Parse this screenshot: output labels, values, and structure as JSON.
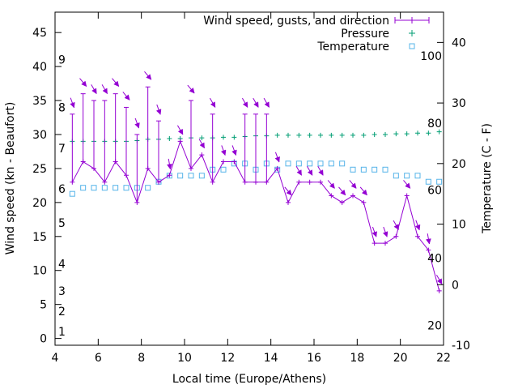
{
  "chart_data": {
    "type": "line",
    "xlabel": "Local time (Europe/Athens)",
    "ylabel_left": "Wind speed (kn - Beaufort)",
    "ylabel_right": "Temperature (C - F)",
    "xlim": [
      4,
      22
    ],
    "ylim_left": [
      -1,
      48
    ],
    "ylim_right": [
      -10,
      45
    ],
    "x_ticks": [
      4,
      6,
      8,
      10,
      12,
      14,
      16,
      18,
      20,
      22
    ],
    "y_ticks_left": [
      0,
      5,
      10,
      15,
      20,
      25,
      30,
      35,
      40,
      45
    ],
    "y_ticks_right": [
      -10,
      0,
      10,
      20,
      30,
      40
    ],
    "beaufort_labels": [
      {
        "label": "1",
        "kn": 1
      },
      {
        "label": "2",
        "kn": 4
      },
      {
        "label": "3",
        "kn": 7
      },
      {
        "label": "4",
        "kn": 11
      },
      {
        "label": "5",
        "kn": 17
      },
      {
        "label": "6",
        "kn": 22
      },
      {
        "label": "7",
        "kn": 28
      },
      {
        "label": "8",
        "kn": 34
      },
      {
        "label": "9",
        "kn": 41
      }
    ],
    "fahrenheit_labels": [
      {
        "label": "20",
        "c": -6.7
      },
      {
        "label": "40",
        "c": 4.4
      },
      {
        "label": "60",
        "c": 15.6
      },
      {
        "label": "80",
        "c": 26.7
      },
      {
        "label": "100",
        "c": 37.8
      }
    ],
    "legend": [
      {
        "label": "Wind speed, gusts, and direction",
        "color": "#9400d3"
      },
      {
        "label": "Pressure",
        "color": "#009e73"
      },
      {
        "label": "Temperature",
        "color": "#56b4e9"
      }
    ],
    "wind": [
      {
        "x": 4.8,
        "speed": 23,
        "gust": 33,
        "dir": 340
      },
      {
        "x": 5.3,
        "speed": 26,
        "gust": 36,
        "dir": 320
      },
      {
        "x": 5.8,
        "speed": 25,
        "gust": 35,
        "dir": 330
      },
      {
        "x": 6.3,
        "speed": 23,
        "gust": 35,
        "dir": 330
      },
      {
        "x": 6.8,
        "speed": 26,
        "gust": 36,
        "dir": 320
      },
      {
        "x": 7.3,
        "speed": 24,
        "gust": 34,
        "dir": 320
      },
      {
        "x": 7.8,
        "speed": 20,
        "gust": 30,
        "dir": 340
      },
      {
        "x": 8.3,
        "speed": 25,
        "gust": 37,
        "dir": 320
      },
      {
        "x": 8.8,
        "speed": 23,
        "gust": 32,
        "dir": 340
      },
      {
        "x": 9.3,
        "speed": 24,
        "gust": 24,
        "dir": 350
      },
      {
        "x": 9.8,
        "speed": 29,
        "gust": 29,
        "dir": 330
      },
      {
        "x": 10.3,
        "speed": 25,
        "gust": 35,
        "dir": 320
      },
      {
        "x": 10.8,
        "speed": 27,
        "gust": 27,
        "dir": 330
      },
      {
        "x": 11.3,
        "speed": 23,
        "gust": 33,
        "dir": 330
      },
      {
        "x": 11.8,
        "speed": 26,
        "gust": 26,
        "dir": 340
      },
      {
        "x": 12.3,
        "speed": 26,
        "gust": 26,
        "dir": 340
      },
      {
        "x": 12.8,
        "speed": 23,
        "gust": 33,
        "dir": 330
      },
      {
        "x": 13.3,
        "speed": 23,
        "gust": 33,
        "dir": 330
      },
      {
        "x": 13.8,
        "speed": 23,
        "gust": 33,
        "dir": 330
      },
      {
        "x": 14.3,
        "speed": 25,
        "gust": 25,
        "dir": 340
      },
      {
        "x": 14.8,
        "speed": 20,
        "gust": 20,
        "dir": 320
      },
      {
        "x": 15.3,
        "speed": 23,
        "gust": 23,
        "dir": 330
      },
      {
        "x": 15.8,
        "speed": 23,
        "gust": 23,
        "dir": 330
      },
      {
        "x": 16.3,
        "speed": 23,
        "gust": 23,
        "dir": 330
      },
      {
        "x": 16.8,
        "speed": 21,
        "gust": 21,
        "dir": 320
      },
      {
        "x": 17.3,
        "speed": 20,
        "gust": 20,
        "dir": 320
      },
      {
        "x": 17.8,
        "speed": 21,
        "gust": 21,
        "dir": 320
      },
      {
        "x": 18.3,
        "speed": 20,
        "gust": 20,
        "dir": 320
      },
      {
        "x": 18.8,
        "speed": 14,
        "gust": 14,
        "dir": 340
      },
      {
        "x": 19.3,
        "speed": 14,
        "gust": 14,
        "dir": 340
      },
      {
        "x": 19.8,
        "speed": 15,
        "gust": 15,
        "dir": 330
      },
      {
        "x": 20.3,
        "speed": 21,
        "gust": 21,
        "dir": 320
      },
      {
        "x": 20.8,
        "speed": 15,
        "gust": 15,
        "dir": 340
      },
      {
        "x": 21.3,
        "speed": 13,
        "gust": 13,
        "dir": 350
      },
      {
        "x": 21.8,
        "speed": 7,
        "gust": 7,
        "dir": 330
      }
    ],
    "pressure": [
      {
        "x": 4.8,
        "y": 29.0
      },
      {
        "x": 5.3,
        "y": 29.0
      },
      {
        "x": 5.8,
        "y": 29.0
      },
      {
        "x": 6.3,
        "y": 29.0
      },
      {
        "x": 6.8,
        "y": 29.0
      },
      {
        "x": 7.3,
        "y": 29.0
      },
      {
        "x": 7.8,
        "y": 29.1
      },
      {
        "x": 8.3,
        "y": 29.3
      },
      {
        "x": 8.8,
        "y": 29.3
      },
      {
        "x": 9.3,
        "y": 29.4
      },
      {
        "x": 9.8,
        "y": 29.4
      },
      {
        "x": 10.3,
        "y": 29.5
      },
      {
        "x": 10.8,
        "y": 29.5
      },
      {
        "x": 11.3,
        "y": 29.5
      },
      {
        "x": 11.8,
        "y": 29.6
      },
      {
        "x": 12.3,
        "y": 29.6
      },
      {
        "x": 12.8,
        "y": 29.7
      },
      {
        "x": 13.3,
        "y": 29.8
      },
      {
        "x": 13.8,
        "y": 29.8
      },
      {
        "x": 14.3,
        "y": 29.9
      },
      {
        "x": 14.8,
        "y": 29.9
      },
      {
        "x": 15.3,
        "y": 29.9
      },
      {
        "x": 15.8,
        "y": 29.9
      },
      {
        "x": 16.3,
        "y": 29.9
      },
      {
        "x": 16.8,
        "y": 29.9
      },
      {
        "x": 17.3,
        "y": 29.9
      },
      {
        "x": 17.8,
        "y": 29.9
      },
      {
        "x": 18.3,
        "y": 29.9
      },
      {
        "x": 18.8,
        "y": 30.0
      },
      {
        "x": 19.3,
        "y": 30.0
      },
      {
        "x": 19.8,
        "y": 30.1
      },
      {
        "x": 20.3,
        "y": 30.1
      },
      {
        "x": 20.8,
        "y": 30.2
      },
      {
        "x": 21.3,
        "y": 30.2
      },
      {
        "x": 21.8,
        "y": 30.4
      }
    ],
    "temperature": [
      {
        "x": 4.8,
        "c": 15
      },
      {
        "x": 5.3,
        "c": 16
      },
      {
        "x": 5.8,
        "c": 16
      },
      {
        "x": 6.3,
        "c": 16
      },
      {
        "x": 6.8,
        "c": 16
      },
      {
        "x": 7.3,
        "c": 16
      },
      {
        "x": 7.8,
        "c": 16
      },
      {
        "x": 8.3,
        "c": 16
      },
      {
        "x": 8.8,
        "c": 17
      },
      {
        "x": 9.3,
        "c": 18
      },
      {
        "x": 9.8,
        "c": 18
      },
      {
        "x": 10.3,
        "c": 18
      },
      {
        "x": 10.8,
        "c": 18
      },
      {
        "x": 11.3,
        "c": 19
      },
      {
        "x": 11.8,
        "c": 19
      },
      {
        "x": 12.3,
        "c": 20
      },
      {
        "x": 12.8,
        "c": 20
      },
      {
        "x": 13.3,
        "c": 19
      },
      {
        "x": 13.8,
        "c": 20
      },
      {
        "x": 14.3,
        "c": 19
      },
      {
        "x": 14.8,
        "c": 20
      },
      {
        "x": 15.3,
        "c": 20
      },
      {
        "x": 15.8,
        "c": 20
      },
      {
        "x": 16.3,
        "c": 20
      },
      {
        "x": 16.8,
        "c": 20
      },
      {
        "x": 17.3,
        "c": 20
      },
      {
        "x": 17.8,
        "c": 19
      },
      {
        "x": 18.3,
        "c": 19
      },
      {
        "x": 18.8,
        "c": 19
      },
      {
        "x": 19.3,
        "c": 19
      },
      {
        "x": 19.8,
        "c": 18
      },
      {
        "x": 20.3,
        "c": 18
      },
      {
        "x": 20.8,
        "c": 18
      },
      {
        "x": 21.3,
        "c": 17
      },
      {
        "x": 21.8,
        "c": 17
      }
    ]
  }
}
